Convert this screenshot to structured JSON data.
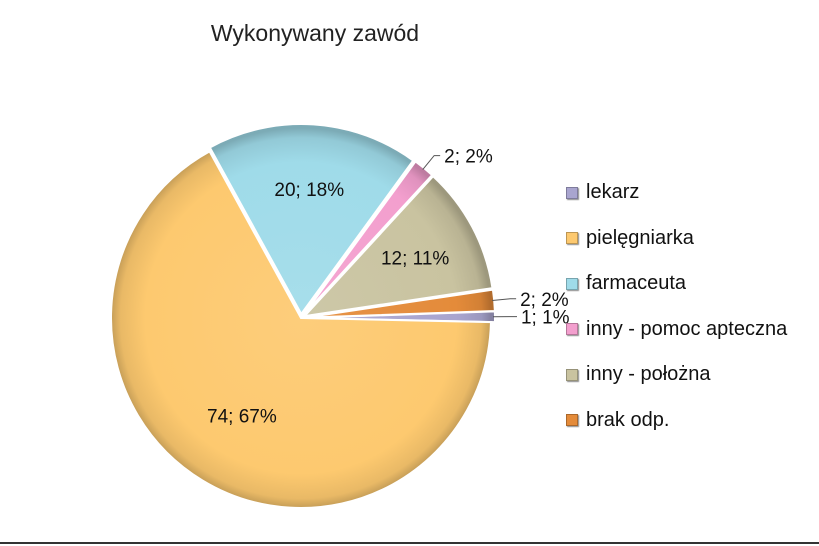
{
  "chart_data": {
    "type": "pie",
    "title": "Wykonywany zawód",
    "legend_position": "right",
    "slices": [
      {
        "name": "lekarz",
        "value": 1,
        "percent": 1,
        "label": "1; 1%",
        "color": "#a9a5cf"
      },
      {
        "name": "pielęgniarka",
        "value": 74,
        "percent": 67,
        "label": "74; 67%",
        "color": "#fdc96f"
      },
      {
        "name": "farmaceuta",
        "value": 20,
        "percent": 18,
        "label": "20; 18%",
        "color": "#9fdbe9"
      },
      {
        "name": "inny - pomoc apteczna",
        "value": 2,
        "percent": 2,
        "label": "2; 2%",
        "color": "#f39fce"
      },
      {
        "name": "inny - położna",
        "value": 12,
        "percent": 11,
        "label": "12; 11%",
        "color": "#c9c3a0"
      },
      {
        "name": "brak odp.",
        "value": 2,
        "percent": 2,
        "label": "2; 2%",
        "color": "#e48b3a"
      }
    ]
  }
}
